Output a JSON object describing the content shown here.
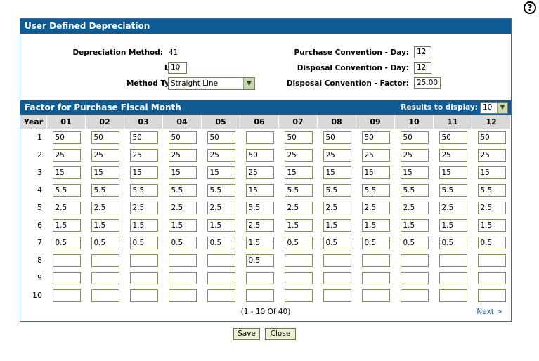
{
  "help_icon": "?",
  "title": "User Defined Depreciation",
  "form": {
    "depreciation_method_label": "Depreciation Method:",
    "depreciation_method_value": "41",
    "life_label": "Life:",
    "life_value": "10",
    "method_type_label": "Method Type:",
    "method_type_value": "Straight Line",
    "purchase_day_label": "Purchase Convention - Day:",
    "purchase_day_value": "12",
    "disposal_day_label": "Disposal Convention - Day:",
    "disposal_day_value": "12",
    "disposal_factor_label": "Disposal Convention - Factor:",
    "disposal_factor_value": "25.00"
  },
  "factor_header": "Factor for Purchase Fiscal Month",
  "results_label": "Results to display:",
  "results_value": "10",
  "columns": [
    "Year",
    "01",
    "02",
    "03",
    "04",
    "05",
    "06",
    "07",
    "08",
    "09",
    "10",
    "11",
    "12"
  ],
  "rows": [
    {
      "year": "1",
      "values": [
        "50",
        "50",
        "50",
        "50",
        "50",
        "",
        "50",
        "50",
        "50",
        "50",
        "50",
        "50"
      ]
    },
    {
      "year": "2",
      "values": [
        "25",
        "25",
        "25",
        "25",
        "25",
        "50",
        "25",
        "25",
        "25",
        "25",
        "25",
        "25"
      ]
    },
    {
      "year": "3",
      "values": [
        "15",
        "15",
        "15",
        "15",
        "15",
        "25",
        "15",
        "15",
        "15",
        "15",
        "15",
        "15"
      ]
    },
    {
      "year": "4",
      "values": [
        "5.5",
        "5.5",
        "5.5",
        "5.5",
        "5.5",
        "15",
        "5.5",
        "5.5",
        "5.5",
        "5.5",
        "5.5",
        "5.5"
      ]
    },
    {
      "year": "5",
      "values": [
        "2.5",
        "2.5",
        "2.5",
        "2.5",
        "2.5",
        "5.5",
        "2.5",
        "2.5",
        "2.5",
        "2.5",
        "2.5",
        "2.5"
      ]
    },
    {
      "year": "6",
      "values": [
        "1.5",
        "1.5",
        "1.5",
        "1.5",
        "1.5",
        "2.5",
        "1.5",
        "1.5",
        "1.5",
        "1.5",
        "1.5",
        "1.5"
      ]
    },
    {
      "year": "7",
      "values": [
        "0.5",
        "0.5",
        "0.5",
        "0.5",
        "0.5",
        "1.5",
        "0.5",
        "0.5",
        "0.5",
        "0.5",
        "0.5",
        "0.5"
      ]
    },
    {
      "year": "8",
      "values": [
        "",
        "",
        "",
        "",
        "",
        "0.5",
        "",
        "",
        "",
        "",
        "",
        ""
      ]
    },
    {
      "year": "9",
      "values": [
        "",
        "",
        "",
        "",
        "",
        "",
        "",
        "",
        "",
        "",
        "",
        ""
      ]
    },
    {
      "year": "10",
      "values": [
        "",
        "",
        "",
        "",
        "",
        "",
        "",
        "",
        "",
        "",
        "",
        ""
      ]
    }
  ],
  "pager_text": "(1 - 10 Of 40)",
  "next_label": "Next >",
  "save_label": "Save",
  "close_label": "Close",
  "dropdown_arrow_icon": "chevron-down-icon"
}
